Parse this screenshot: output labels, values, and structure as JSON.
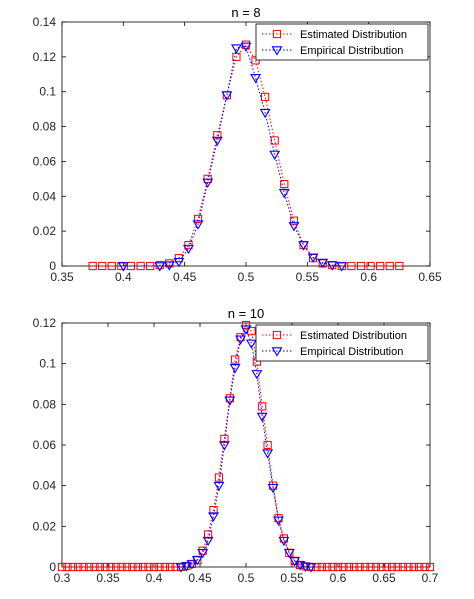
{
  "chart_data": [
    {
      "type": "line",
      "title": "n = 8",
      "xlim": [
        0.35,
        0.65
      ],
      "ylim": [
        0,
        0.14
      ],
      "xticks": [
        "0.35",
        "0.4",
        "0.45",
        "0.5",
        "0.55",
        "0.6",
        "0.65"
      ],
      "yticks": [
        "0",
        "0.02",
        "0.04",
        "0.06",
        "0.08",
        "0.1",
        "0.12",
        "0.14"
      ],
      "grid": false,
      "legend": "top-right",
      "series": [
        {
          "name": "Estimated Distribution",
          "color": "#ff0000",
          "marker": "square",
          "x": [
            0.375,
            0.3828,
            0.3906,
            0.3984,
            0.4062,
            0.4141,
            0.4219,
            0.4297,
            0.4375,
            0.4453,
            0.4531,
            0.4609,
            0.4688,
            0.4766,
            0.4844,
            0.4922,
            0.5,
            0.5078,
            0.5156,
            0.5234,
            0.5312,
            0.5391,
            0.5469,
            0.5547,
            0.5625,
            0.5703,
            0.5781,
            0.5859,
            0.5938,
            0.6016,
            0.6094,
            0.6172,
            0.625
          ],
          "y": [
            0,
            0,
            0,
            0,
            0,
            0,
            0,
            0.0005,
            0.0015,
            0.0045,
            0.012,
            0.027,
            0.05,
            0.075,
            0.098,
            0.12,
            0.127,
            0.118,
            0.097,
            0.072,
            0.047,
            0.026,
            0.012,
            0.0045,
            0.0015,
            0.0005,
            0,
            0,
            0,
            0,
            0,
            0,
            0
          ]
        },
        {
          "name": "Empirical Distribution",
          "color": "#0000ff",
          "marker": "triangle-down",
          "x": [
            0.4,
            0.4297,
            0.4375,
            0.4453,
            0.4531,
            0.4609,
            0.4688,
            0.4766,
            0.4844,
            0.4922,
            0.5,
            0.5078,
            0.5156,
            0.5234,
            0.5312,
            0.5391,
            0.5469,
            0.5547,
            0.5625,
            0.5703,
            0.5781
          ],
          "y": [
            0,
            0,
            0.0005,
            0.0025,
            0.01,
            0.024,
            0.048,
            0.072,
            0.098,
            0.125,
            0.126,
            0.108,
            0.088,
            0.064,
            0.042,
            0.023,
            0.012,
            0.005,
            0.002,
            0.0005,
            0
          ]
        }
      ]
    },
    {
      "type": "line",
      "title": "n = 10",
      "xlim": [
        0.3,
        0.7
      ],
      "ylim": [
        0,
        0.12
      ],
      "xticks": [
        "0.3",
        "0.35",
        "0.4",
        "0.45",
        "0.5",
        "0.55",
        "0.6",
        "0.65",
        "0.7"
      ],
      "yticks": [
        "0",
        "0.02",
        "0.04",
        "0.06",
        "0.08",
        "0.1",
        "0.12"
      ],
      "grid": false,
      "legend": "top-right",
      "series": [
        {
          "name": "Estimated Distribution",
          "color": "#ff0000",
          "marker": "square",
          "x": [
            0.3,
            0.3059,
            0.3118,
            0.3176,
            0.3235,
            0.3294,
            0.3353,
            0.3412,
            0.3471,
            0.3529,
            0.3588,
            0.3647,
            0.3706,
            0.3765,
            0.3824,
            0.3882,
            0.3941,
            0.4,
            0.4059,
            0.4118,
            0.4176,
            0.4235,
            0.4294,
            0.4353,
            0.4412,
            0.4471,
            0.4529,
            0.4588,
            0.4647,
            0.4706,
            0.4765,
            0.4824,
            0.4882,
            0.4941,
            0.5,
            0.5059,
            0.5118,
            0.5176,
            0.5235,
            0.5294,
            0.5353,
            0.5412,
            0.5471,
            0.5529,
            0.5588,
            0.5647,
            0.5706,
            0.5765,
            0.5824,
            0.5882,
            0.5941,
            0.6,
            0.6059,
            0.6118,
            0.6176,
            0.6235,
            0.6294,
            0.6353,
            0.6412,
            0.6471,
            0.6529,
            0.6588,
            0.6647,
            0.6706,
            0.6765,
            0.6824,
            0.6882,
            0.6941,
            0.7
          ],
          "y": [
            0,
            0,
            0,
            0,
            0,
            0,
            0,
            0,
            0,
            0,
            0,
            0,
            0,
            0,
            0,
            0,
            0,
            0,
            0,
            0,
            0,
            0,
            0,
            0.0005,
            0.0015,
            0.0035,
            0.008,
            0.016,
            0.028,
            0.044,
            0.063,
            0.083,
            0.102,
            0.113,
            0.119,
            0.116,
            0.101,
            0.079,
            0.06,
            0.04,
            0.024,
            0.014,
            0.007,
            0.003,
            0.001,
            0.0003,
            0,
            0,
            0,
            0,
            0,
            0,
            0,
            0,
            0,
            0,
            0,
            0,
            0,
            0,
            0,
            0,
            0,
            0,
            0,
            0,
            0,
            0,
            0
          ]
        },
        {
          "name": "Empirical Distribution",
          "color": "#0000ff",
          "marker": "triangle-down",
          "x": [
            0.4294,
            0.4353,
            0.4412,
            0.4471,
            0.4529,
            0.4588,
            0.4647,
            0.4706,
            0.4765,
            0.4824,
            0.4882,
            0.4941,
            0.5,
            0.5059,
            0.5118,
            0.5176,
            0.5235,
            0.5294,
            0.5353,
            0.5412,
            0.5471,
            0.5529,
            0.5588,
            0.5647,
            0.5706
          ],
          "y": [
            0,
            0.0005,
            0.0015,
            0.0035,
            0.007,
            0.013,
            0.025,
            0.04,
            0.06,
            0.082,
            0.098,
            0.112,
            0.117,
            0.11,
            0.095,
            0.074,
            0.056,
            0.039,
            0.023,
            0.013,
            0.007,
            0.003,
            0.001,
            0.0003,
            0
          ]
        }
      ]
    }
  ]
}
